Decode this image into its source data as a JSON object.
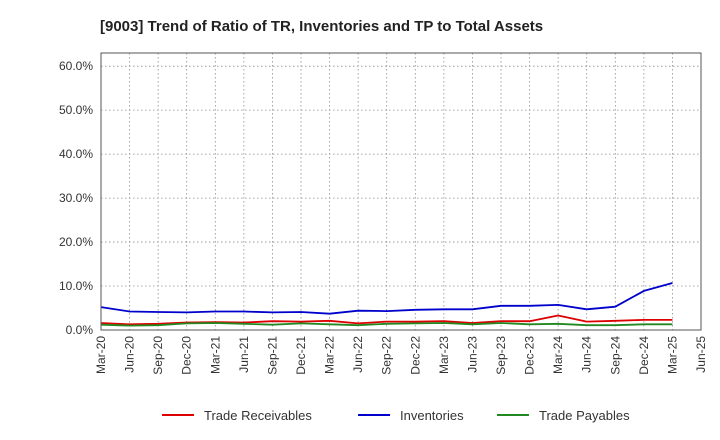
{
  "chart_data": {
    "type": "line",
    "title": "[9003]  Trend of Ratio of TR, Inventories and TP to Total Assets",
    "xlabel": "",
    "ylabel": "",
    "ylim": [
      0,
      63
    ],
    "yticks": [
      "0.0%",
      "10.0%",
      "20.0%",
      "30.0%",
      "40.0%",
      "50.0%",
      "60.0%"
    ],
    "ytick_values": [
      0,
      10,
      20,
      30,
      40,
      50,
      60
    ],
    "grid": true,
    "legend_position": "bottom",
    "x": [
      "Mar-20",
      "Jun-20",
      "Sep-20",
      "Dec-20",
      "Mar-21",
      "Jun-21",
      "Sep-21",
      "Dec-21",
      "Mar-22",
      "Jun-22",
      "Sep-22",
      "Dec-22",
      "Mar-23",
      "Jun-23",
      "Sep-23",
      "Dec-23",
      "Mar-24",
      "Jun-24",
      "Sep-24",
      "Dec-24",
      "Mar-25",
      "Jun-25"
    ],
    "series": [
      {
        "name": "Trade Receivables",
        "color": "#dd0000",
        "values": [
          1.6,
          1.3,
          1.4,
          1.7,
          1.8,
          1.7,
          2.0,
          1.9,
          2.1,
          1.5,
          1.9,
          1.9,
          2.0,
          1.6,
          2.0,
          2.0,
          3.3,
          1.9,
          2.1,
          2.3,
          2.3,
          null
        ]
      },
      {
        "name": "Inventories",
        "color": "#0000cc",
        "values": [
          5.2,
          4.2,
          4.1,
          4.0,
          4.2,
          4.2,
          4.0,
          4.1,
          3.7,
          4.4,
          4.3,
          4.6,
          4.7,
          4.7,
          5.5,
          5.5,
          5.7,
          4.7,
          5.3,
          8.9,
          10.7,
          null
        ]
      },
      {
        "name": "Trade Payables",
        "color": "#228822",
        "values": [
          1.2,
          1.0,
          1.1,
          1.5,
          1.6,
          1.4,
          1.2,
          1.5,
          1.3,
          1.1,
          1.4,
          1.5,
          1.6,
          1.3,
          1.6,
          1.3,
          1.4,
          1.1,
          1.1,
          1.3,
          1.3,
          null
        ]
      }
    ]
  }
}
